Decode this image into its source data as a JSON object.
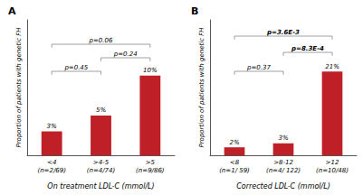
{
  "chart_data": [
    {
      "type": "bar",
      "title": "A",
      "categories": [
        "<4\n(n=2/69)",
        ">4-5\n(n=4/74)",
        ">5\n(n=9/86)"
      ],
      "values": [
        3,
        5,
        10
      ],
      "value_labels": [
        "3%",
        "5%",
        "10%"
      ],
      "data_labels": true,
      "color": "#bf1f26",
      "xlabel": "On treatment LDL-C (mmol/L)",
      "ylabel": "Proportion of patients with genetic FH",
      "ylim": [
        0,
        17
      ],
      "tick_labels": "x",
      "grid": false,
      "annotations": [
        {
          "text": "p=0.45",
          "from": "<4\n(n=2/69)",
          "to": ">4-5\n(n=4/74)",
          "y": 10.54,
          "bold": false
        },
        {
          "text": "p=0.06",
          "from": "<4\n(n=2/69)",
          "to": ">5\n(n=9/86)",
          "y": 13.94,
          "bold": false
        },
        {
          "text": "p=0.24",
          "from": ">4-5\n(n=4/74)",
          "to": ">5\n(n=9/86)",
          "y": 12.24,
          "bold": false
        }
      ]
    },
    {
      "type": "bar",
      "title": "B",
      "categories": [
        "<8\n(n=1/ 59)",
        ">8-12\n(n=4/ 122)",
        ">12\n(n=10/48)"
      ],
      "values": [
        2,
        3,
        21
      ],
      "value_labels": [
        "2%",
        "3%",
        "21%"
      ],
      "data_labels": true,
      "color": "#bf1f26",
      "xlabel": "Corrected LDL-C (mmol/L)",
      "ylabel": "Proportion of patients with genetic FH",
      "ylim": [
        0,
        34
      ],
      "tick_labels": "x",
      "grid": false,
      "annotations": [
        {
          "text": "p=0.37",
          "from": "<8\n(n=1/ 59)",
          "to": ">8-12\n(n=4/ 122)",
          "y": 21.08,
          "bold": false
        },
        {
          "text": "p=3.6E-3",
          "from": "<8\n(n=1/ 59)",
          "to": ">12\n(n=10/48)",
          "y": 29.92,
          "bold": true
        },
        {
          "text": "p=8.3E-4",
          "from": ">8-12\n(n=4/ 122)",
          "to": ">12\n(n=10/48)",
          "y": 25.84,
          "bold": true
        }
      ]
    }
  ]
}
